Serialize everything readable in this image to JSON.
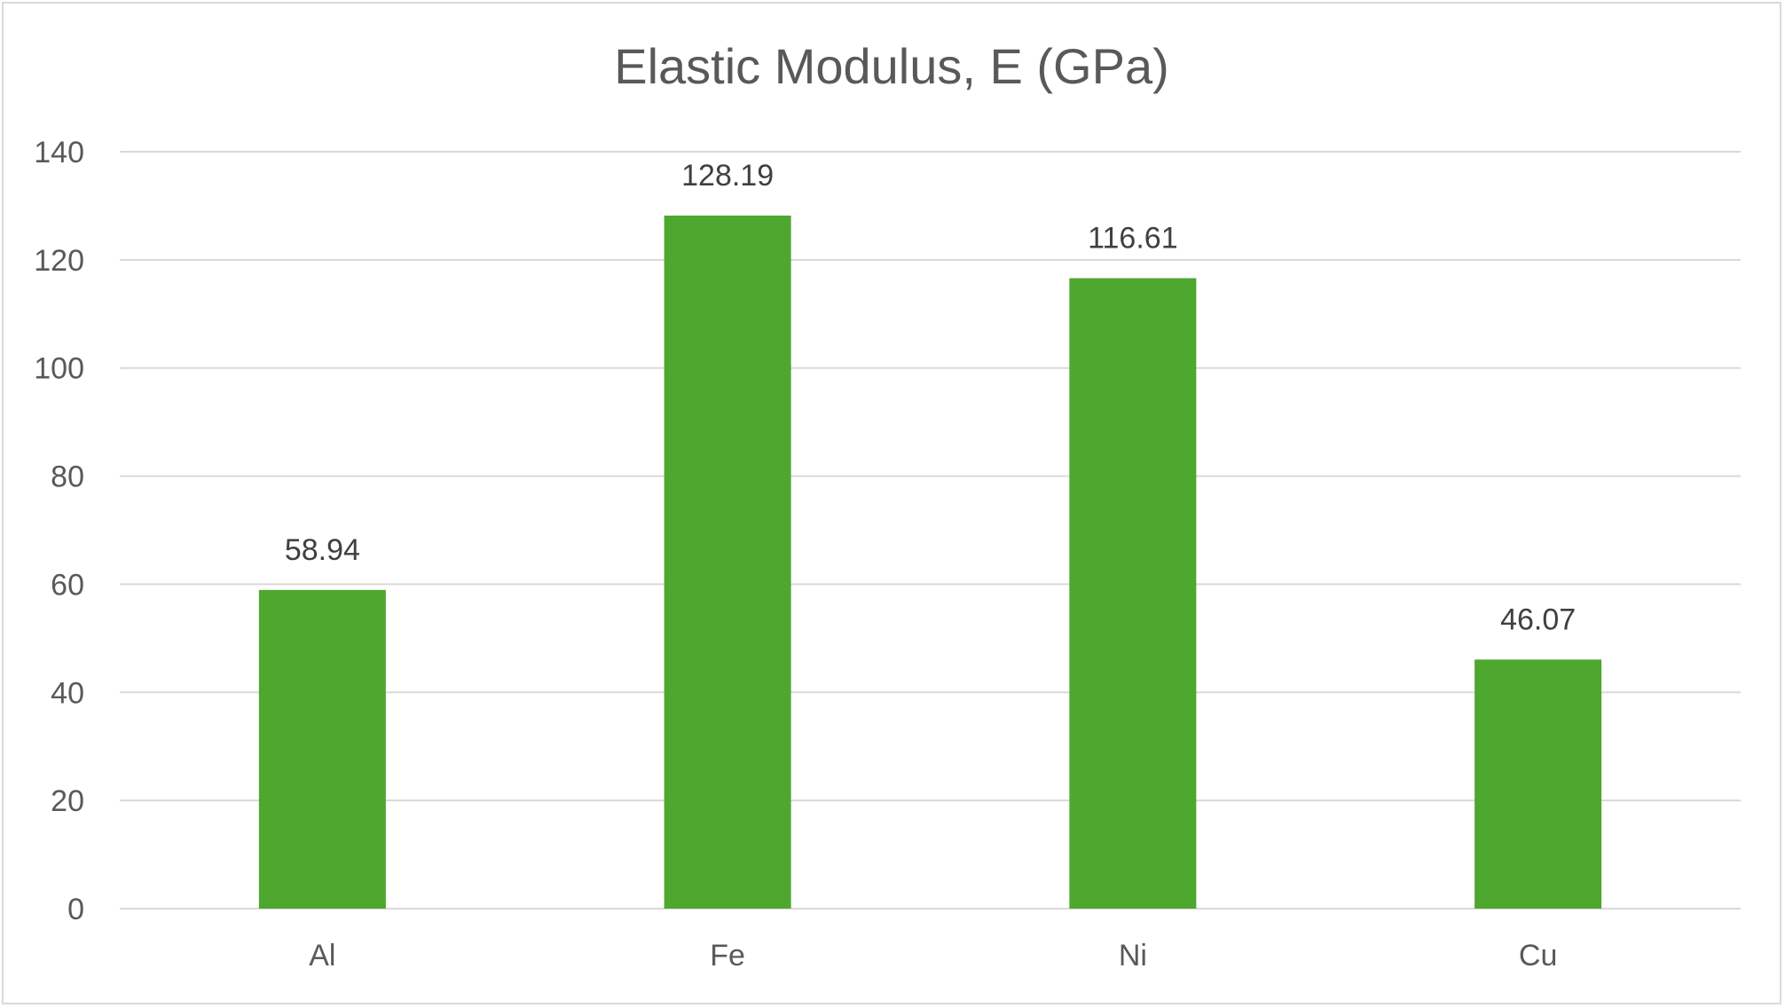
{
  "chart_data": {
    "type": "bar",
    "title": "Elastic Modulus, E (GPa)",
    "categories": [
      "Al",
      "Fe",
      "Ni",
      "Cu"
    ],
    "values": [
      58.94,
      128.19,
      116.61,
      46.07
    ],
    "data_labels": [
      "58.94",
      "128.19",
      "116.61",
      "46.07"
    ],
    "xlabel": "",
    "ylabel": "",
    "ylim": [
      0,
      140
    ],
    "yticks": [
      0,
      20,
      40,
      60,
      80,
      100,
      120,
      140
    ],
    "grid": true,
    "legend": "none",
    "colors": {
      "bar": "#4ea72e",
      "grid": "#d9d9d9",
      "text": "#595959",
      "data_label": "#404040"
    }
  }
}
